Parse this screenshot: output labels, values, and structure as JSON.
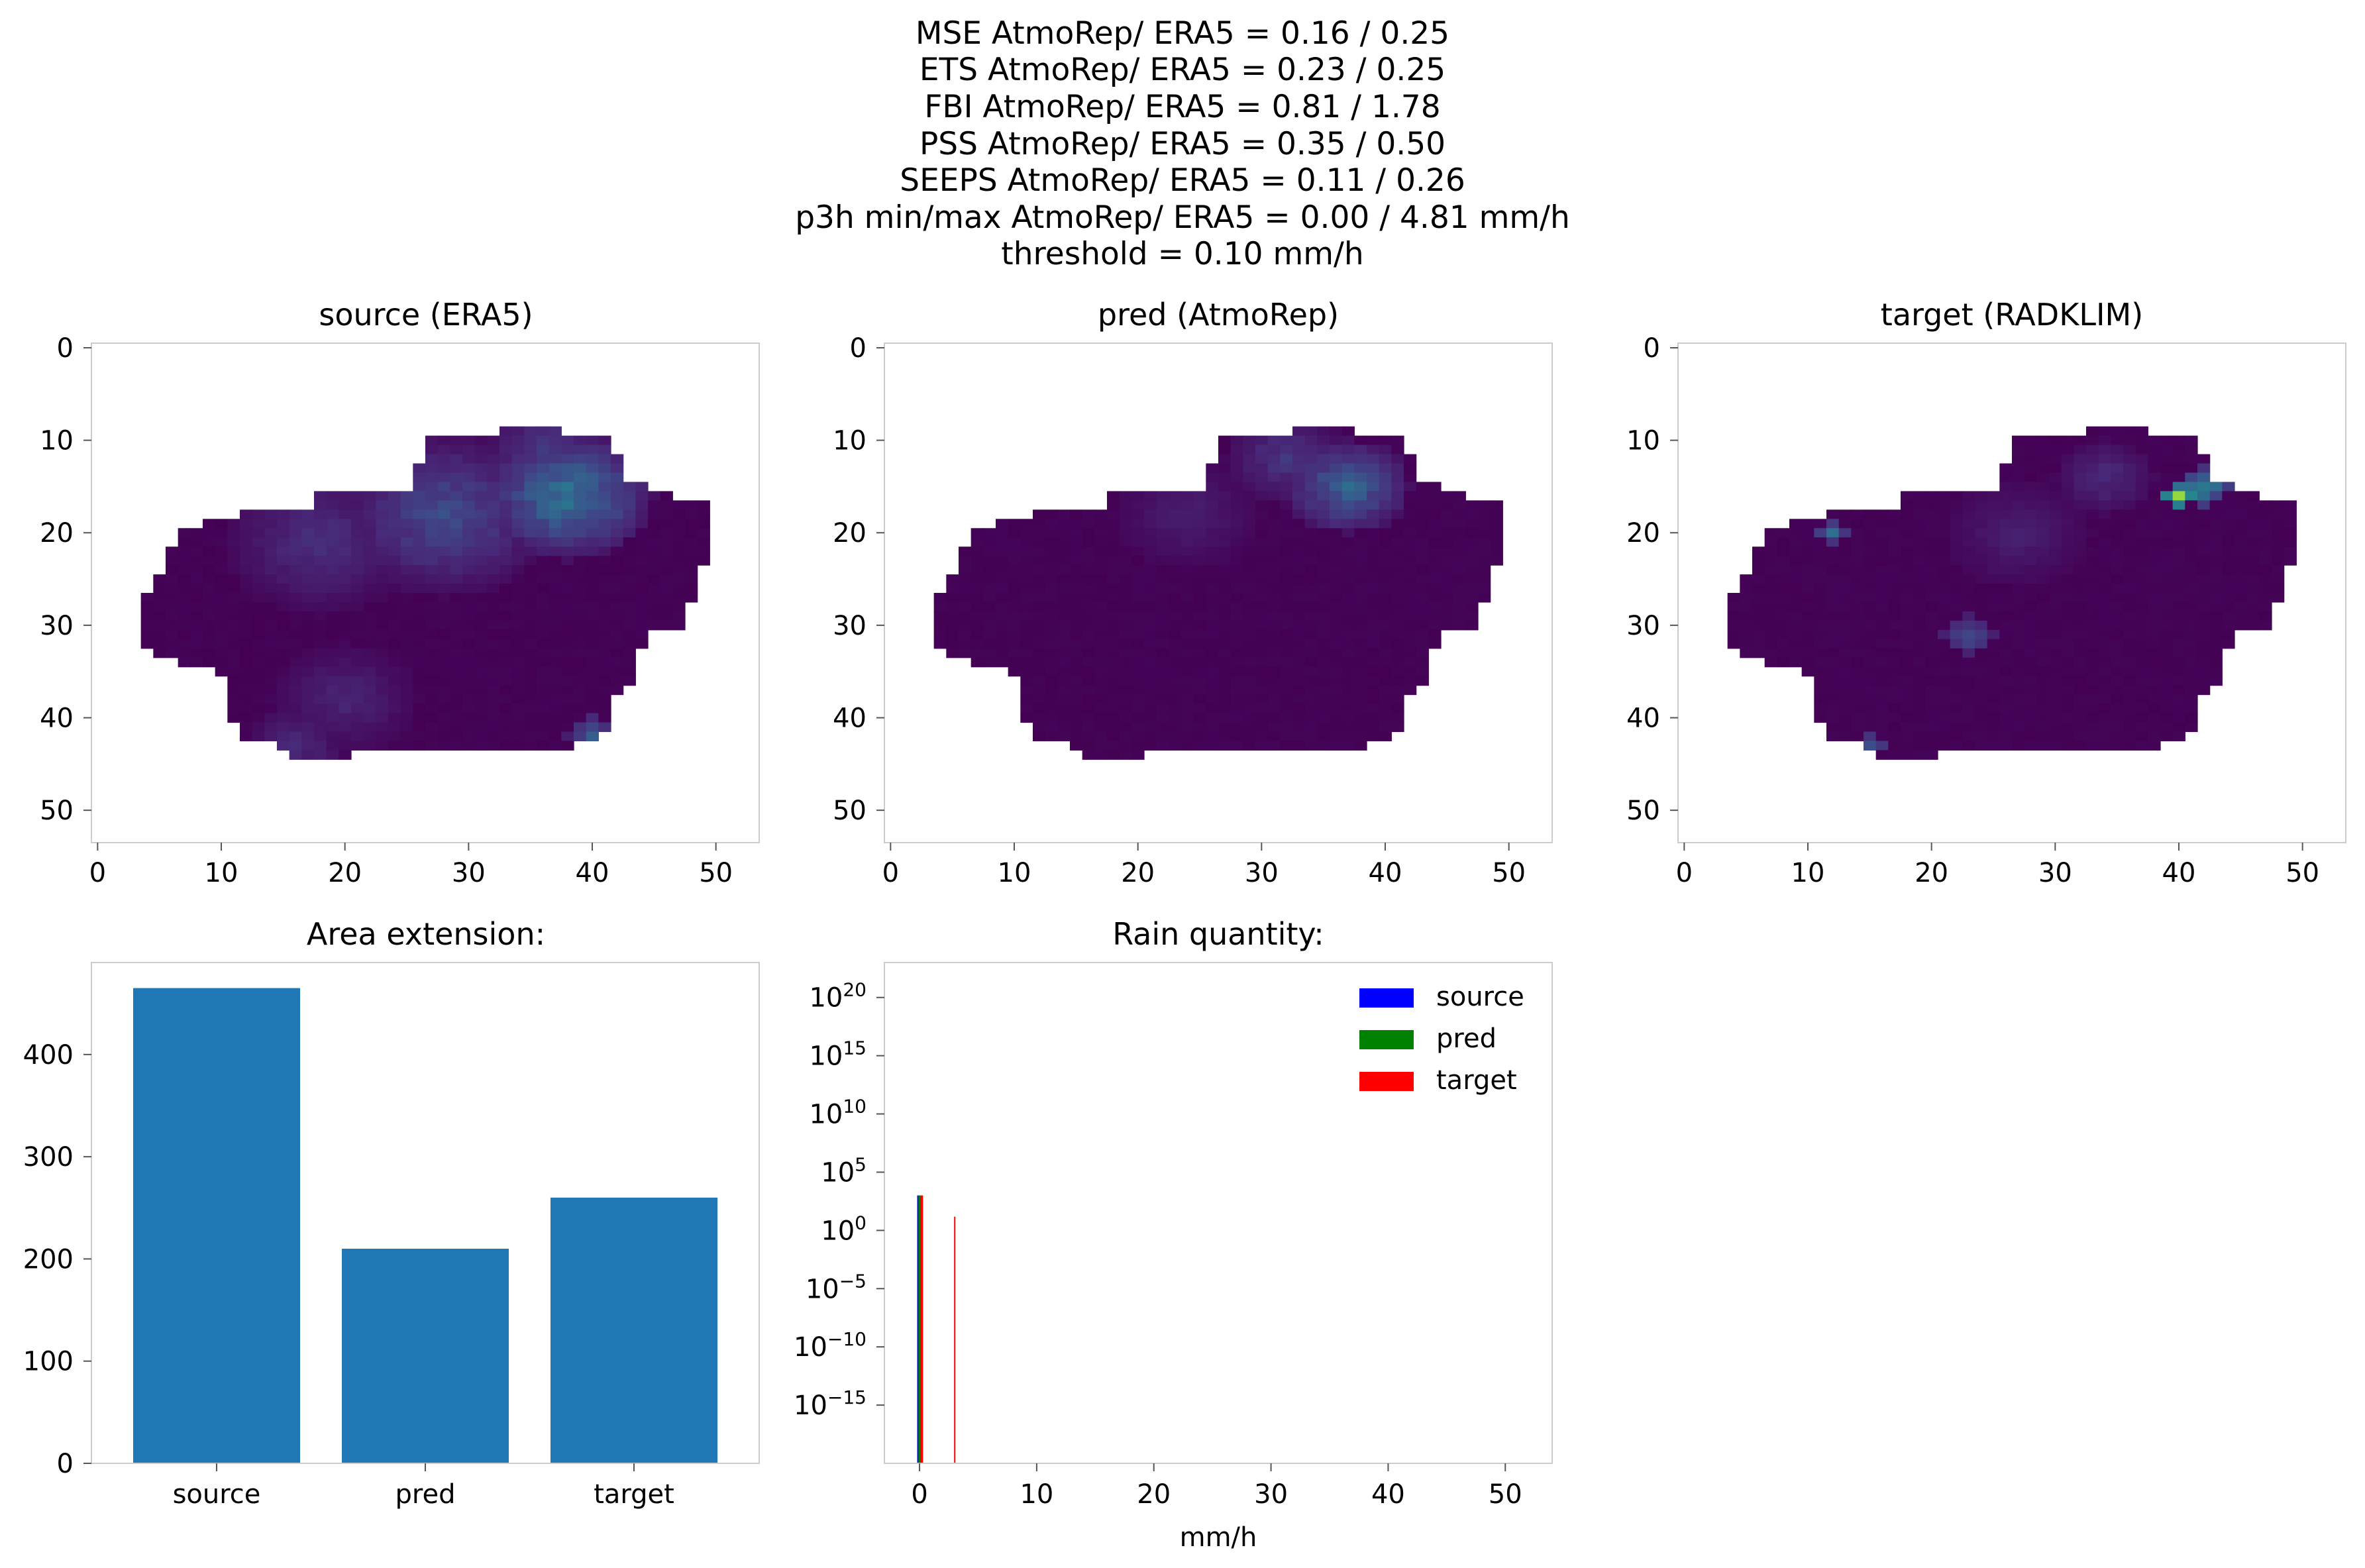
{
  "figure": {
    "suptitle_lines": [
      "MSE AtmoRep/ ERA5 = 0.16 / 0.25",
      "ETS AtmoRep/ ERA5 = 0.23 / 0.25",
      "FBI AtmoRep/ ERA5 = 0.81 / 1.78",
      "PSS AtmoRep/ ERA5 = 0.35 / 0.50",
      "SEEPS AtmoRep/ ERA5 = 0.11 / 0.26",
      "p3h min/max AtmoRep/ ERA5 = 0.00 / 4.81 mm/h",
      "threshold = 0.10 mm/h"
    ]
  },
  "chart_data": [
    {
      "type": "heatmap",
      "id": "source",
      "title": "source (ERA5)",
      "xlim": [
        -0.5,
        53.5
      ],
      "ylim": [
        53.5,
        -0.5
      ],
      "xticks": [
        0,
        10,
        20,
        30,
        40,
        50
      ],
      "yticks": [
        0,
        10,
        20,
        30,
        40,
        50
      ],
      "colormap": "viridis",
      "vmin": 0,
      "vmax": 4.81,
      "region": {
        "rows": [
          9,
          44
        ],
        "cols": [
          4,
          49
        ]
      },
      "hotspots": [
        {
          "x": 38,
          "y": 16,
          "value": 2.2,
          "radius": 7
        },
        {
          "x": 28,
          "y": 18,
          "value": 1.3,
          "radius": 9
        },
        {
          "x": 18,
          "y": 21,
          "value": 0.8,
          "radius": 8
        },
        {
          "x": 36,
          "y": 11,
          "value": 0.9,
          "radius": 5
        },
        {
          "x": 40,
          "y": 42,
          "value": 1.6,
          "radius": 2
        },
        {
          "x": 20,
          "y": 38,
          "value": 0.6,
          "radius": 6
        },
        {
          "x": 16,
          "y": 43,
          "value": 0.7,
          "radius": 4
        }
      ]
    },
    {
      "type": "heatmap",
      "id": "pred",
      "title": "pred (AtmoRep)",
      "xlim": [
        -0.5,
        53.5
      ],
      "ylim": [
        53.5,
        -0.5
      ],
      "xticks": [
        0,
        10,
        20,
        30,
        40,
        50
      ],
      "yticks": [
        0,
        10,
        20,
        30,
        40,
        50
      ],
      "colormap": "viridis",
      "vmin": 0,
      "vmax": 4.81,
      "region": {
        "rows": [
          9,
          44
        ],
        "cols": [
          4,
          49
        ]
      },
      "hotspots": [
        {
          "x": 37,
          "y": 15,
          "value": 1.8,
          "radius": 5
        },
        {
          "x": 32,
          "y": 12,
          "value": 0.9,
          "radius": 5
        },
        {
          "x": 24,
          "y": 18,
          "value": 0.5,
          "radius": 6
        }
      ]
    },
    {
      "type": "heatmap",
      "id": "target",
      "title": "target (RADKLIM)",
      "xlim": [
        -0.5,
        53.5
      ],
      "ylim": [
        53.5,
        -0.5
      ],
      "xticks": [
        0,
        10,
        20,
        30,
        40,
        50
      ],
      "yticks": [
        0,
        10,
        20,
        30,
        40,
        50
      ],
      "colormap": "viridis",
      "vmin": 0,
      "vmax": 4.81,
      "region": {
        "rows": [
          9,
          44
        ],
        "cols": [
          4,
          49
        ]
      },
      "hotspots": [
        {
          "x": 40,
          "y": 16,
          "value": 4.8,
          "radius": 1
        },
        {
          "x": 42,
          "y": 15,
          "value": 2.6,
          "radius": 2
        },
        {
          "x": 12,
          "y": 20,
          "value": 1.8,
          "radius": 1
        },
        {
          "x": 23,
          "y": 31,
          "value": 1.4,
          "radius": 2
        },
        {
          "x": 15,
          "y": 43,
          "value": 1.6,
          "radius": 1
        },
        {
          "x": 34,
          "y": 14,
          "value": 0.7,
          "radius": 4
        },
        {
          "x": 27,
          "y": 20,
          "value": 0.5,
          "radius": 6
        }
      ]
    },
    {
      "type": "bar",
      "id": "area",
      "title": "Area extension:",
      "categories": [
        "source",
        "pred",
        "target"
      ],
      "values": [
        465,
        210,
        260
      ],
      "ylim": [
        0,
        490
      ],
      "yticks": [
        0,
        100,
        200,
        300,
        400
      ],
      "color": "#1f77b4"
    },
    {
      "type": "histogram",
      "id": "rain",
      "title": "Rain quantity:",
      "xlabel": "mm/h",
      "xlim": [
        -3,
        54
      ],
      "xticks": [
        0,
        10,
        20,
        30,
        40,
        50
      ],
      "yscale": "log",
      "ylim_log10": [
        -20,
        23
      ],
      "yticks_log10": [
        -15,
        -10,
        -5,
        0,
        5,
        10,
        15,
        20
      ],
      "series": [
        {
          "name": "source",
          "color": "#0000ff",
          "bars": [
            {
              "x": [
                -0.2,
                0.05
              ],
              "value": 1000
            }
          ]
        },
        {
          "name": "pred",
          "color": "#008000",
          "bars": [
            {
              "x": [
                -0.1,
                0.15
              ],
              "value": 1000
            }
          ]
        },
        {
          "name": "target",
          "color": "#ff0000",
          "bars": [
            {
              "x": [
                0.05,
                0.3
              ],
              "value": 1000
            },
            {
              "x": [
                2.95,
                3.05
              ],
              "value": 15
            }
          ]
        }
      ],
      "legend_position": "upper right"
    }
  ]
}
